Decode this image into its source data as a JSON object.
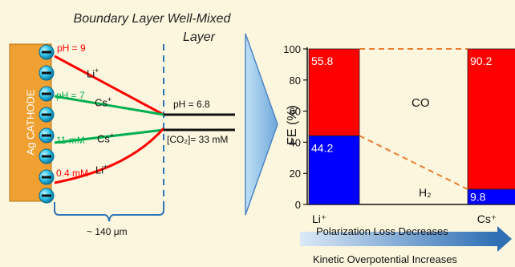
{
  "diagram": {
    "headers": {
      "boundary_layer": "Boundary Layer",
      "well_mixed_layer": "Well-Mixed Layer"
    },
    "electrode_label": "Ag CATHODE",
    "profiles": [
      {
        "label": "pH = 9",
        "color": "#ff0000"
      },
      {
        "label": "pH = 7",
        "color": "#00b050"
      },
      {
        "label": "11 mM",
        "color": "#00b050"
      },
      {
        "label": "0.4 mM",
        "color": "#ff0000"
      }
    ],
    "cations": {
      "li": "Li",
      "cs": "Cs",
      "charge": "+"
    },
    "bulk": {
      "ph": "pH = 6.8",
      "co2": "[CO₂]= 33 mM"
    },
    "thickness_label": "~ 140 μm",
    "colors": {
      "background": "#fdf6de",
      "electrode": "#f0a030",
      "red": "#ff0000",
      "green": "#00b050",
      "orange": "#ed7d31",
      "blue_bar": "#0000ff",
      "arrow": "#9dc3e6",
      "dashed": "#2e75b6"
    }
  },
  "chart_data": {
    "type": "bar",
    "stacked": true,
    "categories": [
      "Li⁺",
      "Cs⁺"
    ],
    "series": [
      {
        "name": "H₂",
        "values": [
          44.2,
          9.8
        ],
        "color": "#0000ff",
        "labels": [
          "44.2",
          "9.8"
        ]
      },
      {
        "name": "CO",
        "values": [
          55.8,
          90.2
        ],
        "color": "#ff0000",
        "labels": [
          "55.8",
          "90.2"
        ]
      }
    ],
    "ylabel": "FE (%)",
    "ylim": [
      0,
      100
    ],
    "yticks": [
      0,
      20,
      40,
      60,
      80,
      100
    ],
    "ytick_labels": [
      "0",
      "20",
      "40",
      "60",
      "80",
      "100"
    ],
    "region_labels": {
      "co": "CO",
      "h2": "H₂"
    },
    "connector_lines": "dashed orange"
  },
  "trends": {
    "polarization": "Polarization Loss Decreases",
    "kinetic": "Kinetic Overpotential Increases"
  }
}
